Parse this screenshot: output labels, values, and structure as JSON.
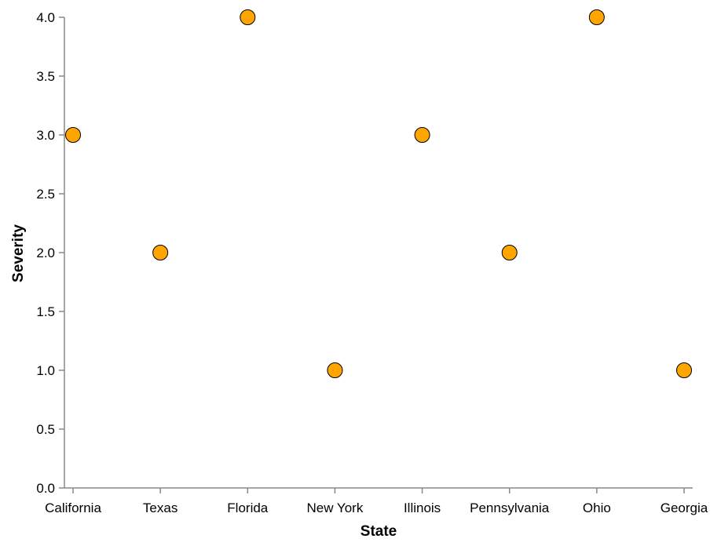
{
  "chart_data": {
    "type": "scatter",
    "categories": [
      "California",
      "Texas",
      "Florida",
      "New York",
      "Illinois",
      "Pennsylvania",
      "Ohio",
      "Georgia"
    ],
    "series": [
      {
        "values": [
          3.0,
          2.0,
          4.0,
          1.0,
          3.0,
          2.0,
          4.0,
          1.0
        ]
      }
    ],
    "xlabel": "State",
    "ylabel": "Severity",
    "ylim": [
      0,
      4
    ],
    "yticks": [
      "0.0",
      "0.5",
      "1.0",
      "1.5",
      "2.0",
      "2.5",
      "3.0",
      "3.5",
      "4.0"
    ],
    "grid": false,
    "colors": {
      "point_fill": "#FFA500",
      "point_stroke": "#000000",
      "axis": "#888888"
    }
  }
}
